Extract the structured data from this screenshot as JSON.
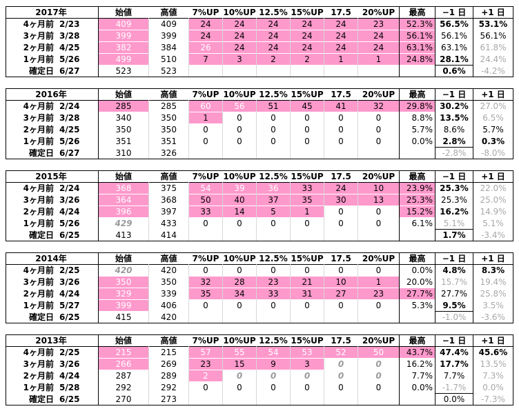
{
  "headers": [
    "始値",
    "高値",
    "7%UP",
    "10%UP",
    "12.5%",
    "15%UP",
    "17.5",
    "20%UP",
    "最高",
    "−1 日",
    "+1 日"
  ],
  "blocks": [
    {
      "year": "2017年",
      "rows": [
        {
          "label": "4ヶ月前",
          "date": "2/23",
          "cells": [
            "409",
            "409",
            "24",
            "24",
            "24",
            "24",
            "24",
            "23",
            "52.3%",
            "56.5%",
            "53.1%"
          ],
          "s": [
            "pl",
            "",
            "p",
            "p",
            "p",
            "p",
            "p",
            "p",
            "pr",
            "b",
            "b"
          ]
        },
        {
          "label": "3ヶ月前",
          "date": "3/28",
          "cells": [
            "399",
            "399",
            "24",
            "24",
            "24",
            "24",
            "24",
            "24",
            "56.1%",
            "56.1%",
            "56.1%"
          ],
          "s": [
            "pl",
            "",
            "p",
            "p",
            "p",
            "p",
            "p",
            "p",
            "pr",
            "",
            ""
          ]
        },
        {
          "label": "2ヶ月前",
          "date": "4/25",
          "cells": [
            "382",
            "384",
            "26",
            "24",
            "24",
            "24",
            "24",
            "24",
            "63.1%",
            "63.1%",
            "61.8%"
          ],
          "s": [
            "pl",
            "",
            "pl",
            "p",
            "p",
            "p",
            "p",
            "p",
            "pr",
            "",
            "g"
          ]
        },
        {
          "label": "1ヶ月前",
          "date": "5/26",
          "cells": [
            "499",
            "510",
            "7",
            "3",
            "2",
            "2",
            "1",
            "1",
            "24.8%",
            "28.1%",
            "24.4%"
          ],
          "s": [
            "pl",
            "",
            "p",
            "p",
            "p",
            "p",
            "p",
            "p",
            "pr",
            "b",
            "g"
          ]
        },
        {
          "label": "確定日",
          "date": "6/27",
          "cells": [
            "523",
            "523",
            "",
            "",
            "",
            "",
            "",
            "",
            "",
            "0.6%",
            "-4.2%"
          ],
          "s": [
            "",
            "",
            "",
            "",
            "",
            "",
            "",
            "",
            "",
            "b",
            "g"
          ]
        }
      ]
    },
    {
      "year": "2016年",
      "rows": [
        {
          "label": "4ヶ月前",
          "date": "2/24",
          "cells": [
            "285",
            "285",
            "60",
            "56",
            "51",
            "45",
            "41",
            "32",
            "29.8%",
            "30.2%",
            "27.0%"
          ],
          "s": [
            "p",
            "",
            "pl",
            "pl",
            "p",
            "p",
            "p",
            "p",
            "pr",
            "b",
            "g"
          ]
        },
        {
          "label": "3ヶ月前",
          "date": "3/28",
          "cells": [
            "340",
            "350",
            "1",
            "0",
            "0",
            "0",
            "0",
            "0",
            "8.8%",
            "13.5%",
            "6.5%"
          ],
          "s": [
            "",
            "",
            "p",
            "",
            "",
            "",
            "",
            "",
            "r",
            "b",
            "g"
          ]
        },
        {
          "label": "2ヶ月前",
          "date": "4/25",
          "cells": [
            "350",
            "350",
            "0",
            "0",
            "0",
            "0",
            "0",
            "0",
            "5.7%",
            "8.6%",
            "5.7%"
          ],
          "s": [
            "",
            "",
            "",
            "",
            "",
            "",
            "",
            "",
            "r",
            "",
            ""
          ]
        },
        {
          "label": "1ヶ月前",
          "date": "5/26",
          "cells": [
            "351",
            "351",
            "0",
            "0",
            "0",
            "0",
            "0",
            "0",
            "0.0%",
            "2.8%",
            "0.3%"
          ],
          "s": [
            "",
            "",
            "",
            "",
            "",
            "",
            "",
            "",
            "r",
            "b",
            "b"
          ]
        },
        {
          "label": "確定日",
          "date": "6/27",
          "cells": [
            "310",
            "326",
            "",
            "",
            "",
            "",
            "",
            "",
            "",
            "-2.8%",
            "-8.0%"
          ],
          "s": [
            "",
            "",
            "",
            "",
            "",
            "",
            "",
            "",
            "",
            "g",
            "g"
          ]
        }
      ]
    },
    {
      "year": "2015年",
      "rows": [
        {
          "label": "4ヶ月前",
          "date": "2/24",
          "cells": [
            "368",
            "375",
            "54",
            "39",
            "36",
            "33",
            "24",
            "10",
            "23.9%",
            "25.3%",
            "22.0%"
          ],
          "s": [
            "pl",
            "",
            "pl",
            "pl",
            "pl",
            "p",
            "p",
            "p",
            "pr",
            "b",
            "g"
          ]
        },
        {
          "label": "3ヶ月前",
          "date": "3/26",
          "cells": [
            "364",
            "368",
            "50",
            "40",
            "37",
            "35",
            "30",
            "13",
            "25.3%",
            "25.3%",
            "25.0%"
          ],
          "s": [
            "pl",
            "",
            "p",
            "p",
            "p",
            "p",
            "p",
            "p",
            "pr",
            "",
            "g"
          ]
        },
        {
          "label": "2ヶ月前",
          "date": "4/24",
          "cells": [
            "396",
            "397",
            "33",
            "14",
            "5",
            "1",
            "0",
            "0",
            "15.2%",
            "16.2%",
            "14.9%"
          ],
          "s": [
            "pl",
            "",
            "p",
            "p",
            "p",
            "p",
            "",
            "",
            "pr",
            "b",
            "g"
          ]
        },
        {
          "label": "1ヶ月前",
          "date": "5/26",
          "cells": [
            "429",
            "433",
            "0",
            "0",
            "0",
            "0",
            "0",
            "0",
            "6.1%",
            "5.1%",
            "5.1%"
          ],
          "s": [
            "i",
            "",
            "",
            "",
            "",
            "",
            "",
            "",
            "r",
            "g",
            "g"
          ]
        },
        {
          "label": "確定日",
          "date": "6/25",
          "cells": [
            "413",
            "414",
            "",
            "",
            "",
            "",
            "",
            "",
            "",
            "1.7%",
            "-3.4%"
          ],
          "s": [
            "",
            "",
            "",
            "",
            "",
            "",
            "",
            "",
            "",
            "b",
            "g"
          ]
        }
      ]
    },
    {
      "year": "2014年",
      "rows": [
        {
          "label": "4ヶ月前",
          "date": "2/25",
          "cells": [
            "420",
            "420",
            "0",
            "0",
            "0",
            "0",
            "0",
            "0",
            "0.0%",
            "4.8%",
            "8.3%"
          ],
          "s": [
            "i",
            "",
            "",
            "",
            "",
            "",
            "",
            "",
            "r",
            "b",
            "b"
          ]
        },
        {
          "label": "3ヶ月前",
          "date": "3/26",
          "cells": [
            "350",
            "350",
            "32",
            "28",
            "23",
            "21",
            "10",
            "1",
            "20.0%",
            "15.7%",
            "19.4%"
          ],
          "s": [
            "pl",
            "",
            "p",
            "p",
            "p",
            "p",
            "p",
            "p",
            "r",
            "g",
            "g"
          ]
        },
        {
          "label": "2ヶ月前",
          "date": "4/24",
          "cells": [
            "329",
            "339",
            "35",
            "34",
            "33",
            "31",
            "27",
            "23",
            "27.7%",
            "27.7%",
            "25.8%"
          ],
          "s": [
            "pl",
            "",
            "p",
            "p",
            "p",
            "p",
            "p",
            "p",
            "pr",
            "",
            "g"
          ]
        },
        {
          "label": "1ヶ月前",
          "date": "5/27",
          "cells": [
            "399",
            "406",
            "0",
            "0",
            "0",
            "0",
            "0",
            "0",
            "5.3%",
            "9.5%",
            "3.5%"
          ],
          "s": [
            "pl",
            "",
            "",
            "",
            "",
            "",
            "",
            "",
            "r",
            "b",
            "g"
          ]
        },
        {
          "label": "確定日",
          "date": "6/25",
          "cells": [
            "415",
            "420",
            "",
            "",
            "",
            "",
            "",
            "",
            "",
            "-1.0%",
            "-3.6%"
          ],
          "s": [
            "",
            "",
            "",
            "",
            "",
            "",
            "",
            "",
            "",
            "g",
            "g"
          ]
        }
      ]
    },
    {
      "year": "2013年",
      "rows": [
        {
          "label": "4ヶ月前",
          "date": "2/25",
          "cells": [
            "215",
            "215",
            "57",
            "55",
            "54",
            "53",
            "52",
            "50",
            "43.7%",
            "47.4%",
            "45.6%"
          ],
          "s": [
            "pl",
            "",
            "pl",
            "pl",
            "pl",
            "pl",
            "pl",
            "pl",
            "pr",
            "b",
            "b"
          ]
        },
        {
          "label": "3ヶ月前",
          "date": "3/26",
          "cells": [
            "266",
            "269",
            "23",
            "15",
            "9",
            "3",
            "0",
            "0",
            "16.2%",
            "17.7%",
            "13.5%"
          ],
          "s": [
            "pl",
            "",
            "p",
            "p",
            "p",
            "p",
            "i",
            "i",
            "r",
            "b",
            "g"
          ]
        },
        {
          "label": "2ヶ月前",
          "date": "4/24",
          "cells": [
            "287",
            "289",
            "2",
            "0",
            "0",
            "0",
            "0",
            "0",
            "7.7%",
            "7.7%",
            "7.3%"
          ],
          "s": [
            "",
            "",
            "pl",
            "i",
            "i",
            "i",
            "i",
            "i",
            "r",
            "",
            "g"
          ]
        },
        {
          "label": "1ヶ月前",
          "date": "5/28",
          "cells": [
            "292",
            "292",
            "0",
            "0",
            "0",
            "0",
            "0",
            "0",
            "0.0%",
            "-1.7%",
            "0.0%"
          ],
          "s": [
            "",
            "",
            "",
            "",
            "",
            "",
            "",
            "",
            "r",
            "g",
            "g"
          ]
        },
        {
          "label": "確定日",
          "date": "6/25",
          "cells": [
            "270",
            "273",
            "",
            "",
            "",
            "",
            "",
            "",
            "",
            "0.0%",
            "-7.3%"
          ],
          "s": [
            "",
            "",
            "",
            "",
            "",
            "",
            "",
            "",
            "",
            "",
            "g"
          ]
        }
      ]
    }
  ]
}
